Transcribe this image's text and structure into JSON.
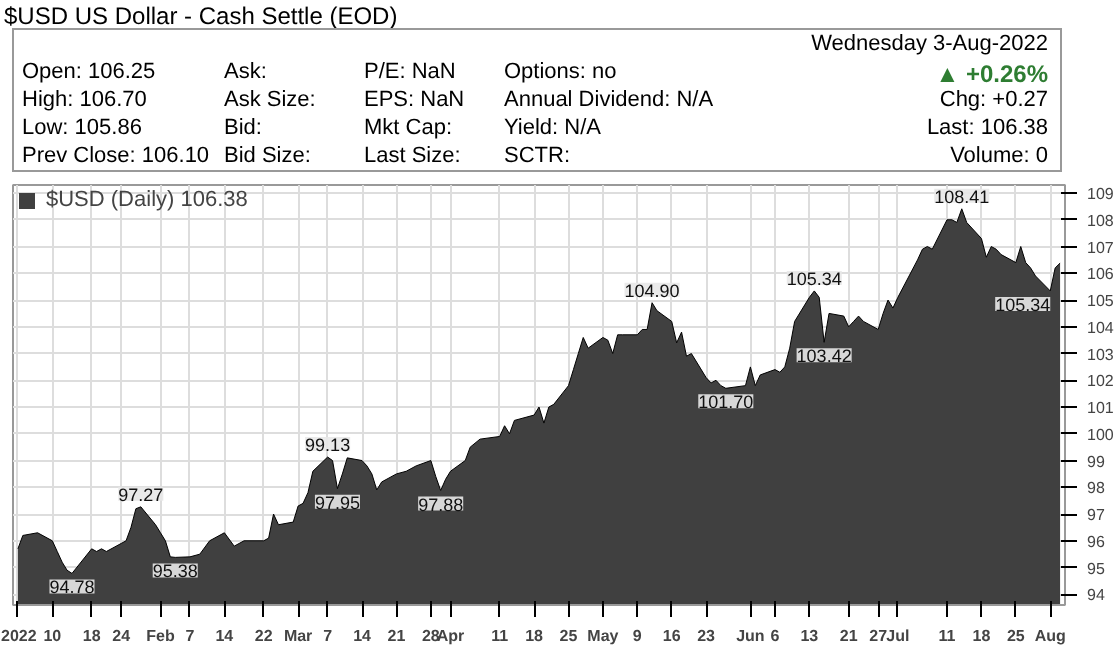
{
  "chart_data": {
    "type": "area",
    "title": "$USD US Dollar - Cash Settle (EOD)",
    "x": [
      "2022-01-03",
      "2022-01-04",
      "2022-01-07",
      "2022-01-10",
      "2022-01-11",
      "2022-01-12",
      "2022-01-13",
      "2022-01-14",
      "2022-01-18",
      "2022-01-19",
      "2022-01-20",
      "2022-01-21",
      "2022-01-24",
      "2022-01-25",
      "2022-01-26",
      "2022-01-27",
      "2022-01-28",
      "2022-01-31",
      "2022-02-01",
      "2022-02-02",
      "2022-02-03",
      "2022-02-04",
      "2022-02-07",
      "2022-02-09",
      "2022-02-11",
      "2022-02-14",
      "2022-02-16",
      "2022-02-18",
      "2022-02-22",
      "2022-02-23",
      "2022-02-24",
      "2022-02-25",
      "2022-02-28",
      "2022-03-01",
      "2022-03-02",
      "2022-03-03",
      "2022-03-04",
      "2022-03-07",
      "2022-03-08",
      "2022-03-09",
      "2022-03-10",
      "2022-03-11",
      "2022-03-14",
      "2022-03-15",
      "2022-03-16",
      "2022-03-17",
      "2022-03-18",
      "2022-03-21",
      "2022-03-23",
      "2022-03-25",
      "2022-03-28",
      "2022-03-29",
      "2022-03-30",
      "2022-03-31",
      "2022-04-01",
      "2022-04-04",
      "2022-04-05",
      "2022-04-07",
      "2022-04-11",
      "2022-04-12",
      "2022-04-13",
      "2022-04-14",
      "2022-04-18",
      "2022-04-19",
      "2022-04-20",
      "2022-04-21",
      "2022-04-22",
      "2022-04-25",
      "2022-04-26",
      "2022-04-27",
      "2022-04-28",
      "2022-04-29",
      "2022-05-02",
      "2022-05-03",
      "2022-05-04",
      "2022-05-05",
      "2022-05-06",
      "2022-05-09",
      "2022-05-10",
      "2022-05-11",
      "2022-05-12",
      "2022-05-13",
      "2022-05-16",
      "2022-05-17",
      "2022-05-18",
      "2022-05-19",
      "2022-05-20",
      "2022-05-23",
      "2022-05-24",
      "2022-05-25",
      "2022-05-26",
      "2022-05-27",
      "2022-05-31",
      "2022-06-01",
      "2022-06-02",
      "2022-06-03",
      "2022-06-06",
      "2022-06-07",
      "2022-06-08",
      "2022-06-09",
      "2022-06-10",
      "2022-06-13",
      "2022-06-14",
      "2022-06-15",
      "2022-06-16",
      "2022-06-17",
      "2022-06-20",
      "2022-06-21",
      "2022-06-22",
      "2022-06-23",
      "2022-06-24",
      "2022-06-27",
      "2022-06-28",
      "2022-06-29",
      "2022-06-30",
      "2022-07-01",
      "2022-07-05",
      "2022-07-06",
      "2022-07-07",
      "2022-07-08",
      "2022-07-11",
      "2022-07-12",
      "2022-07-13",
      "2022-07-14",
      "2022-07-15",
      "2022-07-18",
      "2022-07-19",
      "2022-07-20",
      "2022-07-21",
      "2022-07-22",
      "2022-07-25",
      "2022-07-26",
      "2022-07-27",
      "2022-07-28",
      "2022-07-29",
      "2022-08-01",
      "2022-08-02",
      "2022-08-03"
    ],
    "series": [
      {
        "name": "$USD (Daily) 106.38",
        "color": "#404040",
        "values": [
          95.7,
          96.2,
          96.3,
          96.0,
          95.6,
          95.2,
          94.9,
          94.78,
          95.7,
          95.6,
          95.7,
          95.6,
          95.9,
          96.0,
          96.5,
          97.2,
          97.27,
          96.6,
          96.3,
          96.0,
          95.4,
          95.38,
          95.4,
          95.5,
          96.0,
          96.3,
          95.8,
          96.0,
          96.0,
          96.1,
          97.0,
          96.6,
          96.7,
          97.3,
          97.4,
          97.8,
          98.6,
          99.13,
          99.0,
          97.95,
          98.5,
          99.1,
          99.0,
          98.8,
          98.5,
          97.9,
          98.2,
          98.5,
          98.6,
          98.8,
          99.0,
          98.4,
          97.88,
          98.3,
          98.6,
          99.0,
          99.5,
          99.8,
          99.9,
          100.3,
          100.0,
          100.5,
          100.7,
          101.0,
          100.4,
          101.0,
          101.1,
          101.8,
          102.4,
          103.0,
          103.6,
          103.2,
          103.6,
          103.5,
          103.0,
          103.7,
          103.7,
          103.7,
          103.9,
          103.9,
          104.9,
          104.6,
          104.2,
          103.4,
          103.8,
          102.9,
          103.0,
          102.1,
          101.9,
          102.0,
          101.8,
          101.7,
          101.8,
          102.5,
          101.8,
          102.2,
          102.4,
          102.3,
          102.5,
          103.2,
          104.2,
          105.1,
          105.34,
          105.1,
          103.42,
          104.5,
          104.4,
          104.0,
          104.2,
          104.4,
          104.2,
          103.9,
          104.5,
          105.0,
          104.7,
          105.1,
          106.5,
          106.9,
          107.0,
          106.9,
          108.0,
          108.0,
          107.9,
          108.41,
          107.9,
          107.3,
          106.6,
          107.0,
          106.9,
          106.7,
          106.4,
          107.0,
          106.4,
          106.2,
          105.9,
          105.34,
          106.2,
          106.38
        ]
      }
    ],
    "xlim": [
      "2022-01-02",
      "2022-08-04"
    ],
    "xticks": [
      {
        "value": "2022-01-03",
        "label": "2022"
      },
      {
        "value": "2022-01-10",
        "label": "10"
      },
      {
        "value": "2022-01-18",
        "label": "18"
      },
      {
        "value": "2022-01-24",
        "label": "24"
      },
      {
        "value": "2022-02-01",
        "label": "Feb"
      },
      {
        "value": "2022-02-07",
        "label": "7"
      },
      {
        "value": "2022-02-14",
        "label": "14"
      },
      {
        "value": "2022-02-22",
        "label": "22"
      },
      {
        "value": "2022-03-01",
        "label": "Mar"
      },
      {
        "value": "2022-03-07",
        "label": "7"
      },
      {
        "value": "2022-03-14",
        "label": "14"
      },
      {
        "value": "2022-03-21",
        "label": "21"
      },
      {
        "value": "2022-03-28",
        "label": "28"
      },
      {
        "value": "2022-04-01",
        "label": "Apr"
      },
      {
        "value": "2022-04-11",
        "label": "11"
      },
      {
        "value": "2022-04-18",
        "label": "18"
      },
      {
        "value": "2022-04-25",
        "label": "25"
      },
      {
        "value": "2022-05-02",
        "label": "May"
      },
      {
        "value": "2022-05-09",
        "label": "9"
      },
      {
        "value": "2022-05-16",
        "label": "16"
      },
      {
        "value": "2022-05-23",
        "label": "23"
      },
      {
        "value": "2022-06-01",
        "label": "Jun"
      },
      {
        "value": "2022-06-06",
        "label": "6"
      },
      {
        "value": "2022-06-13",
        "label": "13"
      },
      {
        "value": "2022-06-21",
        "label": "21"
      },
      {
        "value": "2022-06-27",
        "label": "27"
      },
      {
        "value": "2022-07-01",
        "label": "Jul"
      },
      {
        "value": "2022-07-11",
        "label": "11"
      },
      {
        "value": "2022-07-18",
        "label": "18"
      },
      {
        "value": "2022-07-25",
        "label": "25"
      },
      {
        "value": "2022-08-01",
        "label": "Aug"
      }
    ],
    "ylim": [
      93.6,
      109.3
    ],
    "yticks": [
      94,
      95,
      96,
      97,
      98,
      99,
      100,
      101,
      102,
      103,
      104,
      105,
      106,
      107,
      108,
      109
    ],
    "grid": true,
    "legend": "top left",
    "annotations": [
      "Open: 106.25",
      "High: 106.70",
      "Low: 105.86",
      "Prev Close: 106.10",
      "Ask:",
      "Ask Size:",
      "Bid:",
      "Bid Size:",
      "P/E: NaN",
      "EPS: NaN",
      "Mkt Cap:",
      "Last Size:",
      "Options: no",
      "Annual Dividend: N/A",
      "Yield: N/A",
      "SCTR:",
      "Wednesday  3-Aug-2022",
      "▲ +0.26%",
      "Chg: +0.27",
      "Last: 106.38",
      "Volume: 0",
      {
        "text": "94.78",
        "x": "2022-01-14",
        "y": 94.78
      },
      {
        "text": "97.27",
        "x": "2022-01-28",
        "y": 97.27
      },
      {
        "text": "95.38",
        "x": "2022-02-04",
        "y": 95.38
      },
      {
        "text": "99.13",
        "x": "2022-03-07",
        "y": 99.13
      },
      {
        "text": "97.95",
        "x": "2022-03-09",
        "y": 97.95
      },
      {
        "text": "97.88",
        "x": "2022-03-30",
        "y": 97.88
      },
      {
        "text": "104.90",
        "x": "2022-05-12",
        "y": 104.9
      },
      {
        "text": "101.70",
        "x": "2022-05-27",
        "y": 101.7
      },
      {
        "text": "105.34",
        "x": "2022-06-14",
        "y": 105.34
      },
      {
        "text": "103.42",
        "x": "2022-06-16",
        "y": 103.42
      },
      {
        "text": "108.41",
        "x": "2022-07-14",
        "y": 108.41
      },
      {
        "text": "105.34",
        "x": "2022-08-01",
        "y": 105.34
      }
    ]
  }
}
